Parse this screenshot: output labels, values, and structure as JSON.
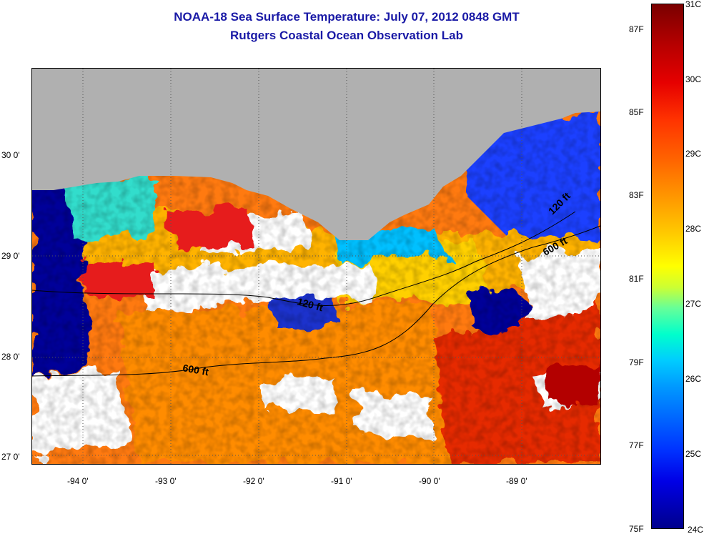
{
  "title": {
    "line1": "NOAA-18 Sea Surface Temperature:  July 07, 2012 0848 GMT",
    "line2": "Rutgers Coastal Ocean Observation Lab"
  },
  "map": {
    "lat_labels": [
      "30 0'",
      "29 0'",
      "28 0'",
      "27 0'"
    ],
    "lon_labels": [
      "-94 0'",
      "-93 0'",
      "-92 0'",
      "-91 0'",
      "-90 0'",
      "-89 0'"
    ],
    "contour_labels": [
      "600 ft",
      "120 ft",
      "600 ft",
      "120 ft"
    ],
    "colors": {
      "land": "#b0b0b0",
      "cloud": "#ffffff",
      "cold": "#000099",
      "warm": "#ff6600",
      "hot": "#cc0000"
    }
  },
  "colorbar": {
    "celsius": [
      "31C",
      "30C",
      "29C",
      "28C",
      "27C",
      "26C",
      "25C",
      "24C"
    ],
    "fahrenheit": [
      "87F",
      "85F",
      "83F",
      "81F",
      "79F",
      "77F",
      "75F"
    ]
  }
}
